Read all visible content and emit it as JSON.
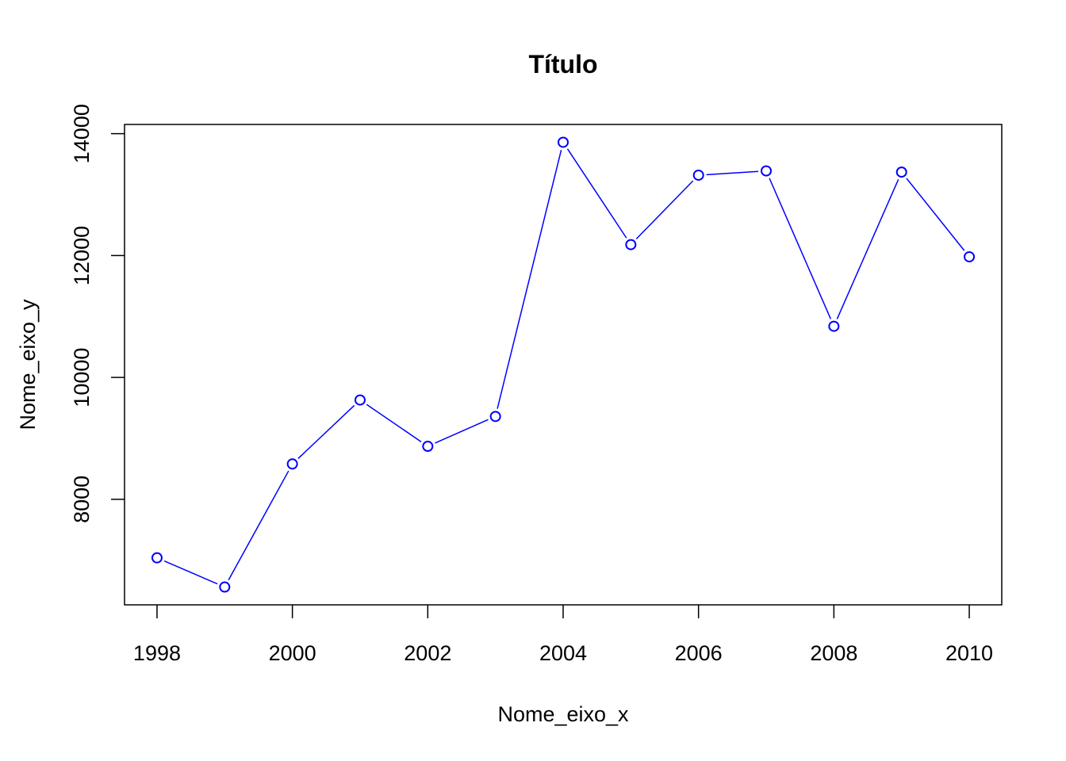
{
  "chart_data": {
    "type": "line",
    "title": "Título",
    "xlabel": "Nome_eixo_x",
    "ylabel": "Nome_eixo_y",
    "x": [
      1998,
      1999,
      2000,
      2001,
      2002,
      2003,
      2004,
      2005,
      2006,
      2007,
      2008,
      2009,
      2010
    ],
    "series": [
      {
        "values": [
          7040,
          6560,
          8580,
          9630,
          8870,
          9360,
          13860,
          12180,
          13320,
          13390,
          10840,
          13370,
          11980
        ],
        "color": "#0000ff",
        "marker": "open-circle"
      }
    ],
    "xticks": [
      "1998",
      "2000",
      "2002",
      "2004",
      "2006",
      "2008",
      "2010"
    ],
    "yticks": [
      "8000",
      "10000",
      "12000",
      "14000"
    ],
    "xlim": [
      1997.52,
      2010.48
    ],
    "ylim": [
      6268,
      14152
    ],
    "grid": false,
    "legend": "none"
  }
}
